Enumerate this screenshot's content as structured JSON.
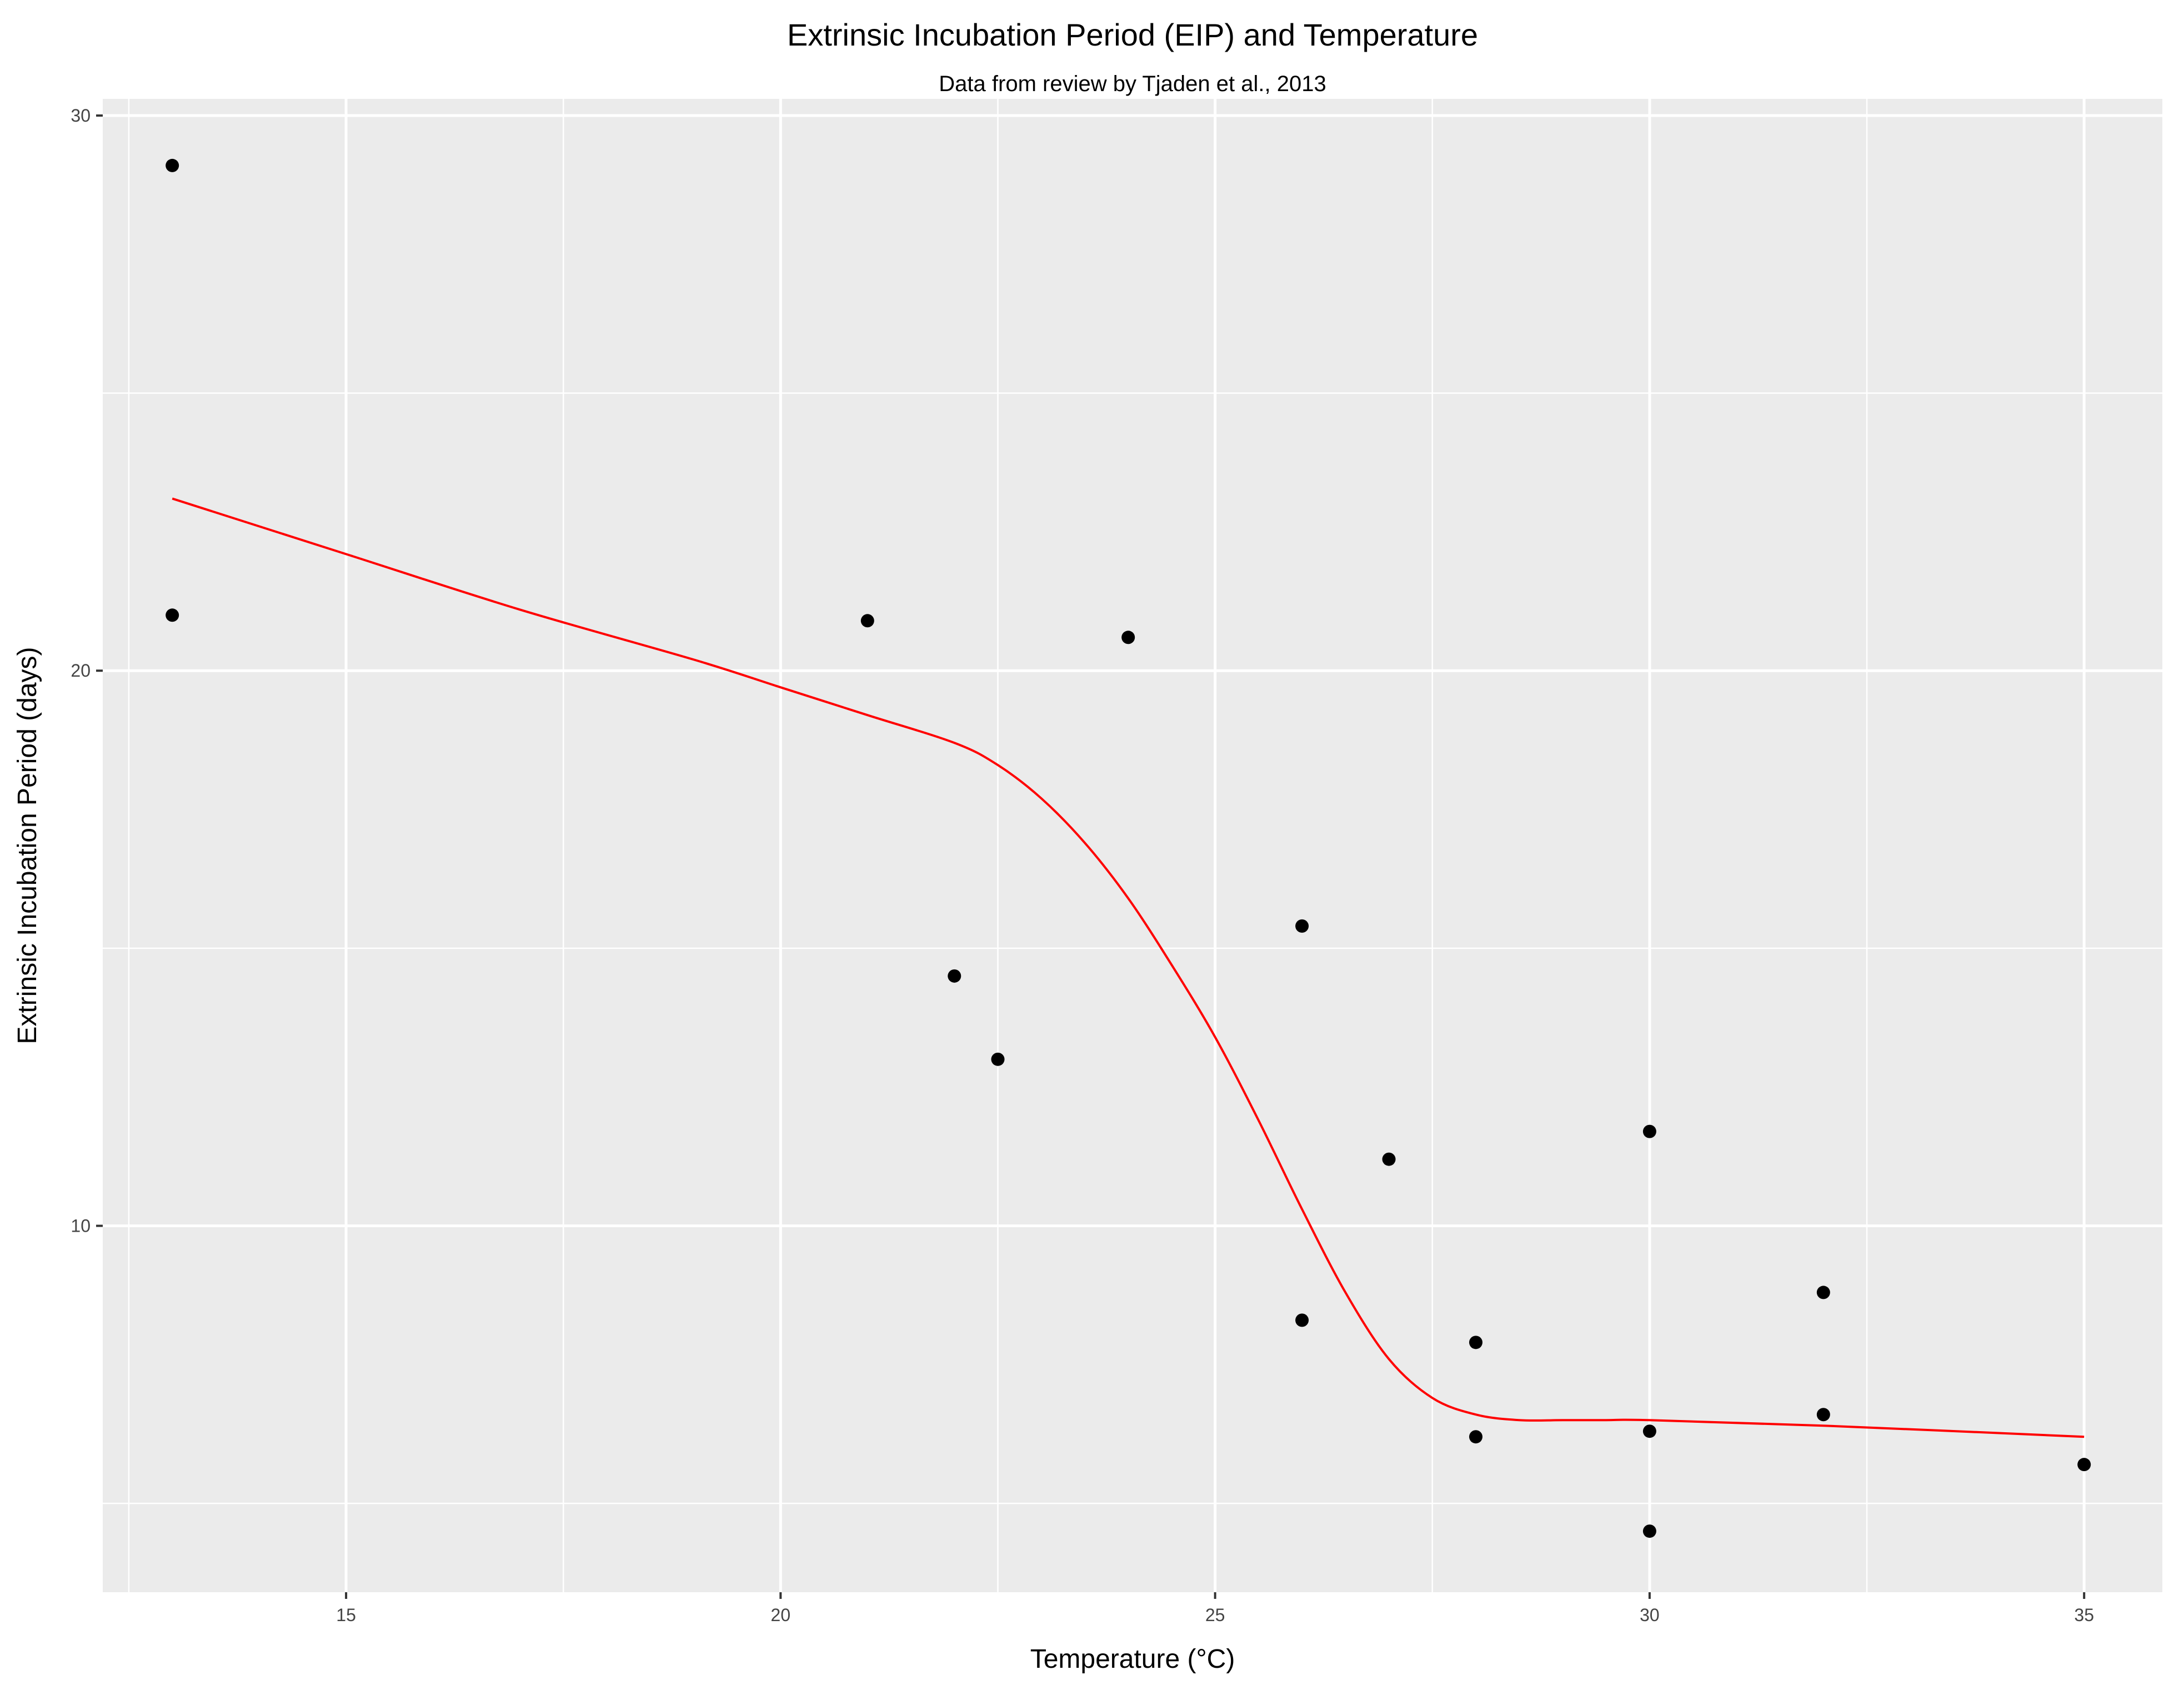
{
  "chart_data": {
    "type": "scatter",
    "title": "Extrinsic Incubation Period (EIP) and Temperature",
    "subtitle": "Data from review by Tjaden et al., 2013",
    "xlabel": "Temperature (°C)",
    "ylabel": "Extrinsic Incubation Period (days)",
    "xlim": [
      12.2,
      35.9
    ],
    "ylim": [
      3.4,
      30.3
    ],
    "x_ticks": [
      15,
      20,
      25,
      30,
      35
    ],
    "y_ticks": [
      10,
      20,
      30
    ],
    "grid": true,
    "legend": "none",
    "colors": {
      "panel_background": "#EBEBEB",
      "grid": "#FFFFFF",
      "points": "#000000",
      "trend": "#FF0000"
    },
    "points": [
      {
        "x": 13,
        "y": 29.1
      },
      {
        "x": 13,
        "y": 21.0
      },
      {
        "x": 21,
        "y": 20.9
      },
      {
        "x": 22,
        "y": 14.5
      },
      {
        "x": 22.5,
        "y": 13.0
      },
      {
        "x": 24,
        "y": 20.6
      },
      {
        "x": 26,
        "y": 15.4
      },
      {
        "x": 26,
        "y": 8.3
      },
      {
        "x": 27,
        "y": 11.2
      },
      {
        "x": 28,
        "y": 7.9
      },
      {
        "x": 28,
        "y": 6.2
      },
      {
        "x": 30,
        "y": 11.7
      },
      {
        "x": 30,
        "y": 6.3
      },
      {
        "x": 30,
        "y": 4.5
      },
      {
        "x": 32,
        "y": 8.8
      },
      {
        "x": 32,
        "y": 6.6
      },
      {
        "x": 35,
        "y": 5.7
      }
    ],
    "trend_line": {
      "x": [
        13,
        15,
        17,
        19,
        20,
        21,
        22,
        22.5,
        23,
        23.5,
        24,
        24.5,
        25,
        25.5,
        26,
        26.5,
        27,
        27.5,
        28,
        28.5,
        29,
        29.5,
        30,
        32,
        35
      ],
      "y": [
        23.1,
        22.1,
        21.1,
        20.2,
        19.7,
        19.2,
        18.7,
        18.3,
        17.7,
        16.9,
        15.9,
        14.7,
        13.4,
        11.9,
        10.3,
        8.8,
        7.6,
        6.9,
        6.6,
        6.5,
        6.5,
        6.5,
        6.5,
        6.4,
        6.2
      ]
    }
  }
}
